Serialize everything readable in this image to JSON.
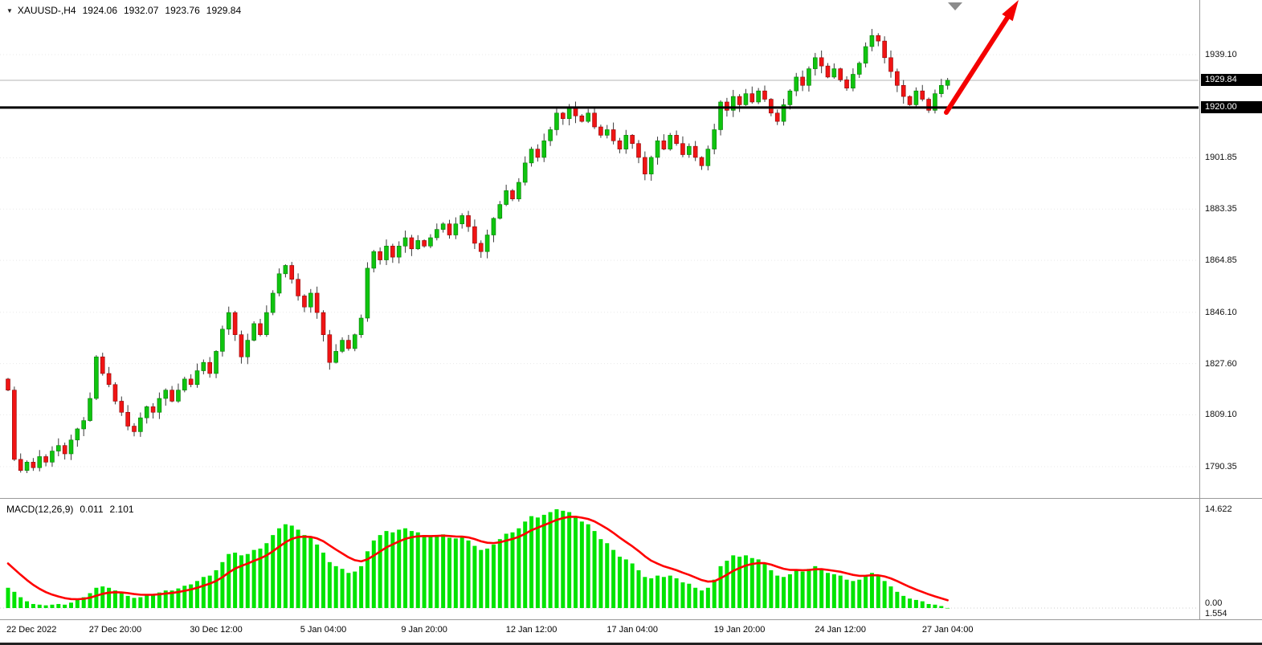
{
  "header": {
    "symbol_marker": "▼",
    "symbol": "XAUUSD-,H4",
    "open": "1924.06",
    "high": "1932.07",
    "low": "1923.76",
    "close": "1929.84"
  },
  "price_axis": {
    "labels": [
      {
        "text": "1939.10",
        "value": 1939.1
      },
      {
        "text": "1901.85",
        "value": 1901.85
      },
      {
        "text": "1883.35",
        "value": 1883.35
      },
      {
        "text": "1864.85",
        "value": 1864.85
      },
      {
        "text": "1846.10",
        "value": 1846.1
      },
      {
        "text": "1827.60",
        "value": 1827.6
      },
      {
        "text": "1809.10",
        "value": 1809.1
      },
      {
        "text": "1790.35",
        "value": 1790.35
      }
    ],
    "badges": [
      {
        "name": "current-price-badge",
        "text": "1929.84",
        "value": 1929.84
      },
      {
        "name": "level-price-badge",
        "text": "1920.00",
        "value": 1920.0
      }
    ]
  },
  "macd_panel": {
    "title": "MACD(12,26,9)",
    "macd_value": "0.011",
    "signal_value": "2.101",
    "axis_labels": [
      "14.622",
      "0.00",
      "1.554"
    ]
  },
  "colors": {
    "bull": "#0fc40f",
    "bull_border": "#067d06",
    "bear": "#f01414",
    "bear_border": "#8f0606",
    "wick": "#3a3a3a",
    "histogram": "#00e400",
    "signal": "#ff0000",
    "level_line": "#000000",
    "current_line": "#b5b5b5",
    "arrow": "#f40000",
    "grid": "#e9e9e9",
    "separator": "#9a9a9a",
    "shift_marker": "#8c8c8c",
    "badge_bg": "#000000",
    "badge_text": "#ffffff"
  },
  "chart_data": {
    "type": "candlestick",
    "symbol": "XAUUSD-",
    "timeframe": "H4",
    "title": "XAUUSD-,H4 1924.06 1932.07 1923.76 1929.84",
    "ohlc_display": {
      "open": 1924.06,
      "high": 1932.07,
      "low": 1923.76,
      "close": 1929.84
    },
    "main": {
      "first_open": 1822,
      "closes": [
        1818,
        1793,
        1789,
        1792,
        1790,
        1794,
        1792,
        1796,
        1798,
        1795,
        1800,
        1804,
        1807,
        1815,
        1830,
        1824,
        1820,
        1814,
        1810,
        1805,
        1803,
        1808,
        1812,
        1810,
        1815,
        1818,
        1814,
        1818,
        1822,
        1820,
        1825,
        1828,
        1824,
        1832,
        1840,
        1846,
        1838,
        1830,
        1836,
        1842,
        1838,
        1846,
        1853,
        1860,
        1863,
        1858,
        1852,
        1848,
        1853,
        1846,
        1838,
        1828,
        1832,
        1836,
        1833,
        1838,
        1844,
        1862,
        1868,
        1865,
        1870,
        1866,
        1870,
        1873,
        1869,
        1872,
        1870,
        1873,
        1876,
        1878,
        1874,
        1878,
        1881,
        1877,
        1871,
        1868,
        1874,
        1880,
        1885,
        1890,
        1887,
        1893,
        1900,
        1905,
        1902,
        1908,
        1912,
        1918,
        1916,
        1920,
        1917,
        1915,
        1918,
        1913,
        1910,
        1912,
        1908,
        1905,
        1910,
        1907,
        1902,
        1896,
        1902,
        1908,
        1905,
        1910,
        1907,
        1903,
        1906,
        1902,
        1899,
        1905,
        1912,
        1922,
        1919,
        1924,
        1921,
        1925,
        1922,
        1926,
        1923,
        1918,
        1915,
        1921,
        1926,
        1931,
        1928,
        1934,
        1938,
        1935,
        1931,
        1934,
        1930,
        1927,
        1932,
        1936,
        1942,
        1946,
        1944,
        1938,
        1933,
        1928,
        1924,
        1921,
        1926,
        1923,
        1919,
        1925,
        1928,
        1929.84
      ],
      "current_price": 1929.84,
      "level_line": 1920.0,
      "y_axis_ticks": [
        1939.1,
        1929.84,
        1920.0,
        1901.85,
        1883.35,
        1864.85,
        1846.1,
        1827.6,
        1809.1,
        1790.35
      ],
      "visible_price_range": [
        1779,
        1959
      ]
    },
    "macd": {
      "params": "12,26,9",
      "current_macd": 0.011,
      "current_signal": 2.101,
      "axis_max": 14.622,
      "signal_seed": 7.5,
      "histogram": [
        3.0,
        2.4,
        1.6,
        1.0,
        0.6,
        0.5,
        0.4,
        0.5,
        0.6,
        0.5,
        0.8,
        1.2,
        1.6,
        2.2,
        3.0,
        3.2,
        3.0,
        2.6,
        2.2,
        1.8,
        1.5,
        1.6,
        1.9,
        2.0,
        2.3,
        2.6,
        2.6,
        2.9,
        3.3,
        3.5,
        4.0,
        4.6,
        4.8,
        5.6,
        6.8,
        8.0,
        8.2,
        7.8,
        8.0,
        8.6,
        8.8,
        9.6,
        10.8,
        11.8,
        12.4,
        12.2,
        11.6,
        10.8,
        10.4,
        9.4,
        8.2,
        6.8,
        6.2,
        5.8,
        5.2,
        5.4,
        6.2,
        8.4,
        10.0,
        10.8,
        11.4,
        11.2,
        11.6,
        11.8,
        11.4,
        11.2,
        10.8,
        10.6,
        10.8,
        10.9,
        10.4,
        10.3,
        10.5,
        10.0,
        9.2,
        8.6,
        8.8,
        9.4,
        10.2,
        11.0,
        11.2,
        11.8,
        12.8,
        13.6,
        13.4,
        13.8,
        14.2,
        14.622,
        14.4,
        14.2,
        13.6,
        12.8,
        12.4,
        11.4,
        10.2,
        9.6,
        8.6,
        7.6,
        7.2,
        6.6,
        5.6,
        4.6,
        4.4,
        4.8,
        4.6,
        4.8,
        4.4,
        3.8,
        3.6,
        3.0,
        2.6,
        3.0,
        4.2,
        6.2,
        7.0,
        7.8,
        7.6,
        7.8,
        7.4,
        7.2,
        6.6,
        5.6,
        4.8,
        4.6,
        5.0,
        5.6,
        5.4,
        5.8,
        6.2,
        5.8,
        5.2,
        5.0,
        4.8,
        4.2,
        4.0,
        4.2,
        4.8,
        5.2,
        4.8,
        4.0,
        3.2,
        2.4,
        1.8,
        1.4,
        1.2,
        1.0,
        0.6,
        0.5,
        0.3,
        0.011
      ]
    },
    "x_ticks": [
      {
        "label": "22 Dec 2022",
        "bar": 0
      },
      {
        "label": "27 Dec 20:00",
        "bar": 17
      },
      {
        "label": "30 Dec 12:00",
        "bar": 33
      },
      {
        "label": "5 Jan 04:00",
        "bar": 50
      },
      {
        "label": "9 Jan 20:00",
        "bar": 66
      },
      {
        "label": "12 Jan 12:00",
        "bar": 83
      },
      {
        "label": "17 Jan 04:00",
        "bar": 99
      },
      {
        "label": "19 Jan 20:00",
        "bar": 116
      },
      {
        "label": "24 Jan 12:00",
        "bar": 132
      },
      {
        "label": "27 Jan 04:00",
        "bar": 149
      }
    ],
    "annotations": {
      "trend_arrow_direction": "up",
      "horizontal_level": 1920.0
    }
  }
}
